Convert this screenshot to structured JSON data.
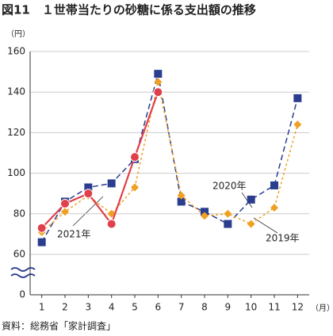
{
  "chart_data": {
    "type": "line",
    "title": "図11　１世帯当たりの砂糖に係る支出額の推移",
    "y_unit": "（円）",
    "x_unit": "（月）",
    "source": "資料：総務省「家計調査」",
    "categories": [
      "1",
      "2",
      "3",
      "4",
      "5",
      "6",
      "7",
      "8",
      "9",
      "10",
      "11",
      "12"
    ],
    "ylim": [
      0,
      160
    ],
    "yticks": [
      0,
      60,
      80,
      100,
      120,
      140,
      160
    ],
    "axis_break": [
      0,
      60
    ],
    "grid": true,
    "series": [
      {
        "name": "2020年",
        "color": "#2b3d8f",
        "marker": "square",
        "dash": "7,4",
        "values": [
          66,
          86,
          93,
          95,
          107,
          149,
          86,
          81,
          75,
          87,
          94,
          137
        ]
      },
      {
        "name": "2019年",
        "color": "#f0a020",
        "marker": "diamond",
        "dash": "3,3",
        "values": [
          71,
          81,
          89,
          80,
          93,
          145,
          89,
          79,
          80,
          75,
          83,
          124
        ]
      },
      {
        "name": "2021年",
        "color": "#e0404a",
        "marker": "circle",
        "dash": "",
        "values": [
          73,
          85,
          90,
          75,
          108,
          140,
          null,
          null,
          null,
          null,
          null,
          null
        ]
      }
    ]
  }
}
